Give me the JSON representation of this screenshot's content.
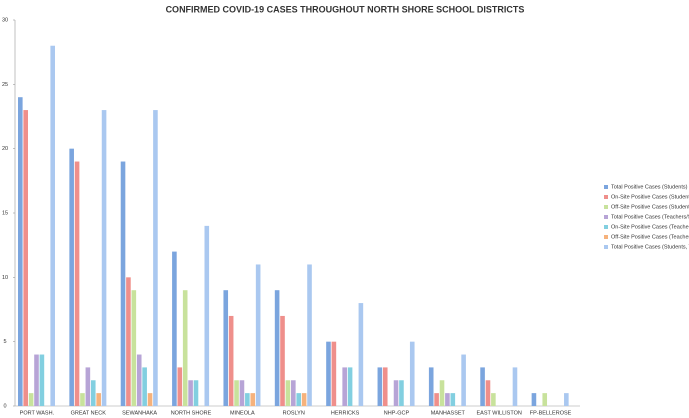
{
  "chart_data": {
    "type": "bar",
    "title": "CONFIRMED COVID-19 CASES THROUGHOUT NORTH SHORE SCHOOL DISTRICTS",
    "categories": [
      "PORT WASH.",
      "GREAT NECK",
      "SEWANHAKA",
      "NORTH SHORE",
      "MINEOLA",
      "ROSLYN",
      "HERRICKS",
      "NHP-GCP",
      "MANHASSET",
      "EAST WILLISTON",
      "FP-BELLEROSE"
    ],
    "series": [
      {
        "name": "Total Positive Cases (Students)",
        "color": "#7ba5de",
        "values": [
          24,
          20,
          19,
          12,
          9,
          9,
          5,
          3,
          3,
          3,
          1
        ]
      },
      {
        "name": "On-Site Positive Cases (Students)",
        "color": "#ef8f8b",
        "values": [
          23,
          19,
          10,
          3,
          7,
          7,
          5,
          3,
          1,
          2,
          0
        ]
      },
      {
        "name": "Off-Site Positive Cases (Students)",
        "color": "#c8e29c",
        "values": [
          1,
          1,
          9,
          9,
          2,
          2,
          0,
          0,
          2,
          1,
          1
        ]
      },
      {
        "name": "Total Positive Cases (Teachers/Staff)",
        "color": "#b7a4d6",
        "values": [
          4,
          3,
          4,
          2,
          2,
          2,
          3,
          2,
          1,
          0,
          0
        ]
      },
      {
        "name": "On-Site Positive Cases (Teachers/Staff)",
        "color": "#82cfe0",
        "values": [
          4,
          2,
          3,
          2,
          1,
          1,
          3,
          2,
          1,
          0,
          0
        ]
      },
      {
        "name": "Off-Site Positive Cases (Teachers/Staff)",
        "color": "#f6b27c",
        "values": [
          0,
          1,
          1,
          0,
          1,
          1,
          0,
          0,
          0,
          0,
          0
        ]
      },
      {
        "name": "Total Positive Cases (Students, Teachers/Staff)",
        "color": "#aac8f0",
        "values": [
          28,
          23,
          23,
          14,
          11,
          11,
          8,
          5,
          4,
          3,
          1
        ]
      }
    ],
    "ylim": [
      0,
      30
    ],
    "yticks": [
      0,
      5,
      10,
      15,
      20,
      25,
      30
    ],
    "grid": false,
    "legend": "right"
  }
}
